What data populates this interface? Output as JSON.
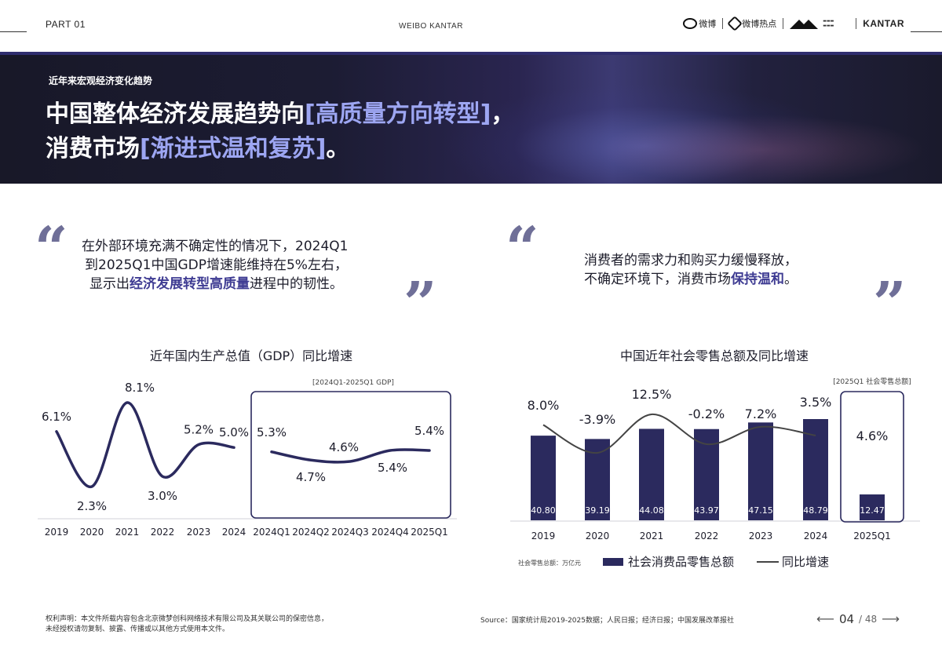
{
  "header": {
    "part": "PART 01",
    "center": "WEIBO KANTAR",
    "weibo_logo": "微博",
    "hot_logo": "微博热点",
    "kantar_logo": "KANTAR"
  },
  "hero": {
    "subtitle": "近年来宏观经济变化趋势",
    "title_line1_a": "中国整体经济发展趋势向",
    "title_line1_hl": "[高质量方向转型]",
    "title_line1_b": "，",
    "title_line2_a": "消费市场",
    "title_line2_hl": "[渐进式温和复苏]",
    "title_line2_b": "。"
  },
  "quote_left": {
    "line1": "在外部环境充满不确定性的情况下，2024Q1",
    "line2": "到2025Q1中国GDP增速能维持在5%左右，",
    "line3_a": "显示出",
    "line3_hl": "经济发展转型高质量",
    "line3_b": "进程中的韧性。"
  },
  "quote_right": {
    "line1": "消费者的需求力和购买力缓慢释放，",
    "line2_a": "不确定环境下，消费市场",
    "line2_hl": "保持温和",
    "line2_b": "。"
  },
  "gdp_chart_title": "近年国内生产总值（GDP）同比增速",
  "retail_chart_title": "中国近年社会零售总额及同比增速",
  "chart_data": [
    {
      "type": "line",
      "title": "近年国内生产总值（GDP）同比增速",
      "x": [
        "2019",
        "2020",
        "2021",
        "2022",
        "2023",
        "2024"
      ],
      "values": [
        6.1,
        2.3,
        8.1,
        3.0,
        5.2,
        5.0
      ],
      "labels": [
        "6.1%",
        "2.3%",
        "8.1%",
        "3.0%",
        "5.2%",
        "5.0%"
      ],
      "inset": {
        "title": "[2024Q1-2025Q1 GDP]",
        "x": [
          "2024Q1",
          "2024Q2",
          "2024Q3",
          "2024Q4",
          "2025Q1"
        ],
        "values": [
          5.3,
          4.7,
          4.6,
          5.4,
          5.4
        ],
        "labels": [
          "5.3%",
          "4.7%",
          "4.6%",
          "5.4%",
          "5.4%"
        ]
      },
      "color": "#2b2a5e"
    },
    {
      "type": "bar",
      "title": "中国近年社会零售总额及同比增速",
      "categories": [
        "2019",
        "2020",
        "2021",
        "2022",
        "2023",
        "2024",
        "2025Q1"
      ],
      "series": [
        {
          "name": "社会消费品零售总额",
          "values": [
            40.8,
            39.19,
            44.08,
            43.97,
            47.15,
            48.79,
            12.47
          ],
          "labels": [
            "40.80",
            "39.19",
            "44.08",
            "43.97",
            "47.15",
            "48.79",
            "12.47"
          ]
        },
        {
          "name": "同比增速",
          "values": [
            8.0,
            -3.9,
            12.5,
            -0.2,
            7.2,
            3.5,
            4.6
          ],
          "labels": [
            "8.0%",
            "-3.9%",
            "12.5%",
            "-0.2%",
            "7.2%",
            "3.5%",
            "4.6%"
          ]
        }
      ],
      "inset_title": "[2025Q1 社会零售总额]",
      "unit_note": "社会零售总额：万亿元",
      "bar_color": "#2b2a5e",
      "line_color": "#444444"
    }
  ],
  "footer": {
    "copyright_line1": "权利声明：本文件所载内容包含北京微梦创科网络技术有限公司及其关联公司的保密信息，",
    "copyright_line2": "未经授权请勿复制、披露、传播或以其他方式使用本文件。",
    "source": "Source：国家统计局2019-2025数据；人民日报；经济日报；中国发展改革报社",
    "page": "04",
    "total": "/ 48"
  }
}
